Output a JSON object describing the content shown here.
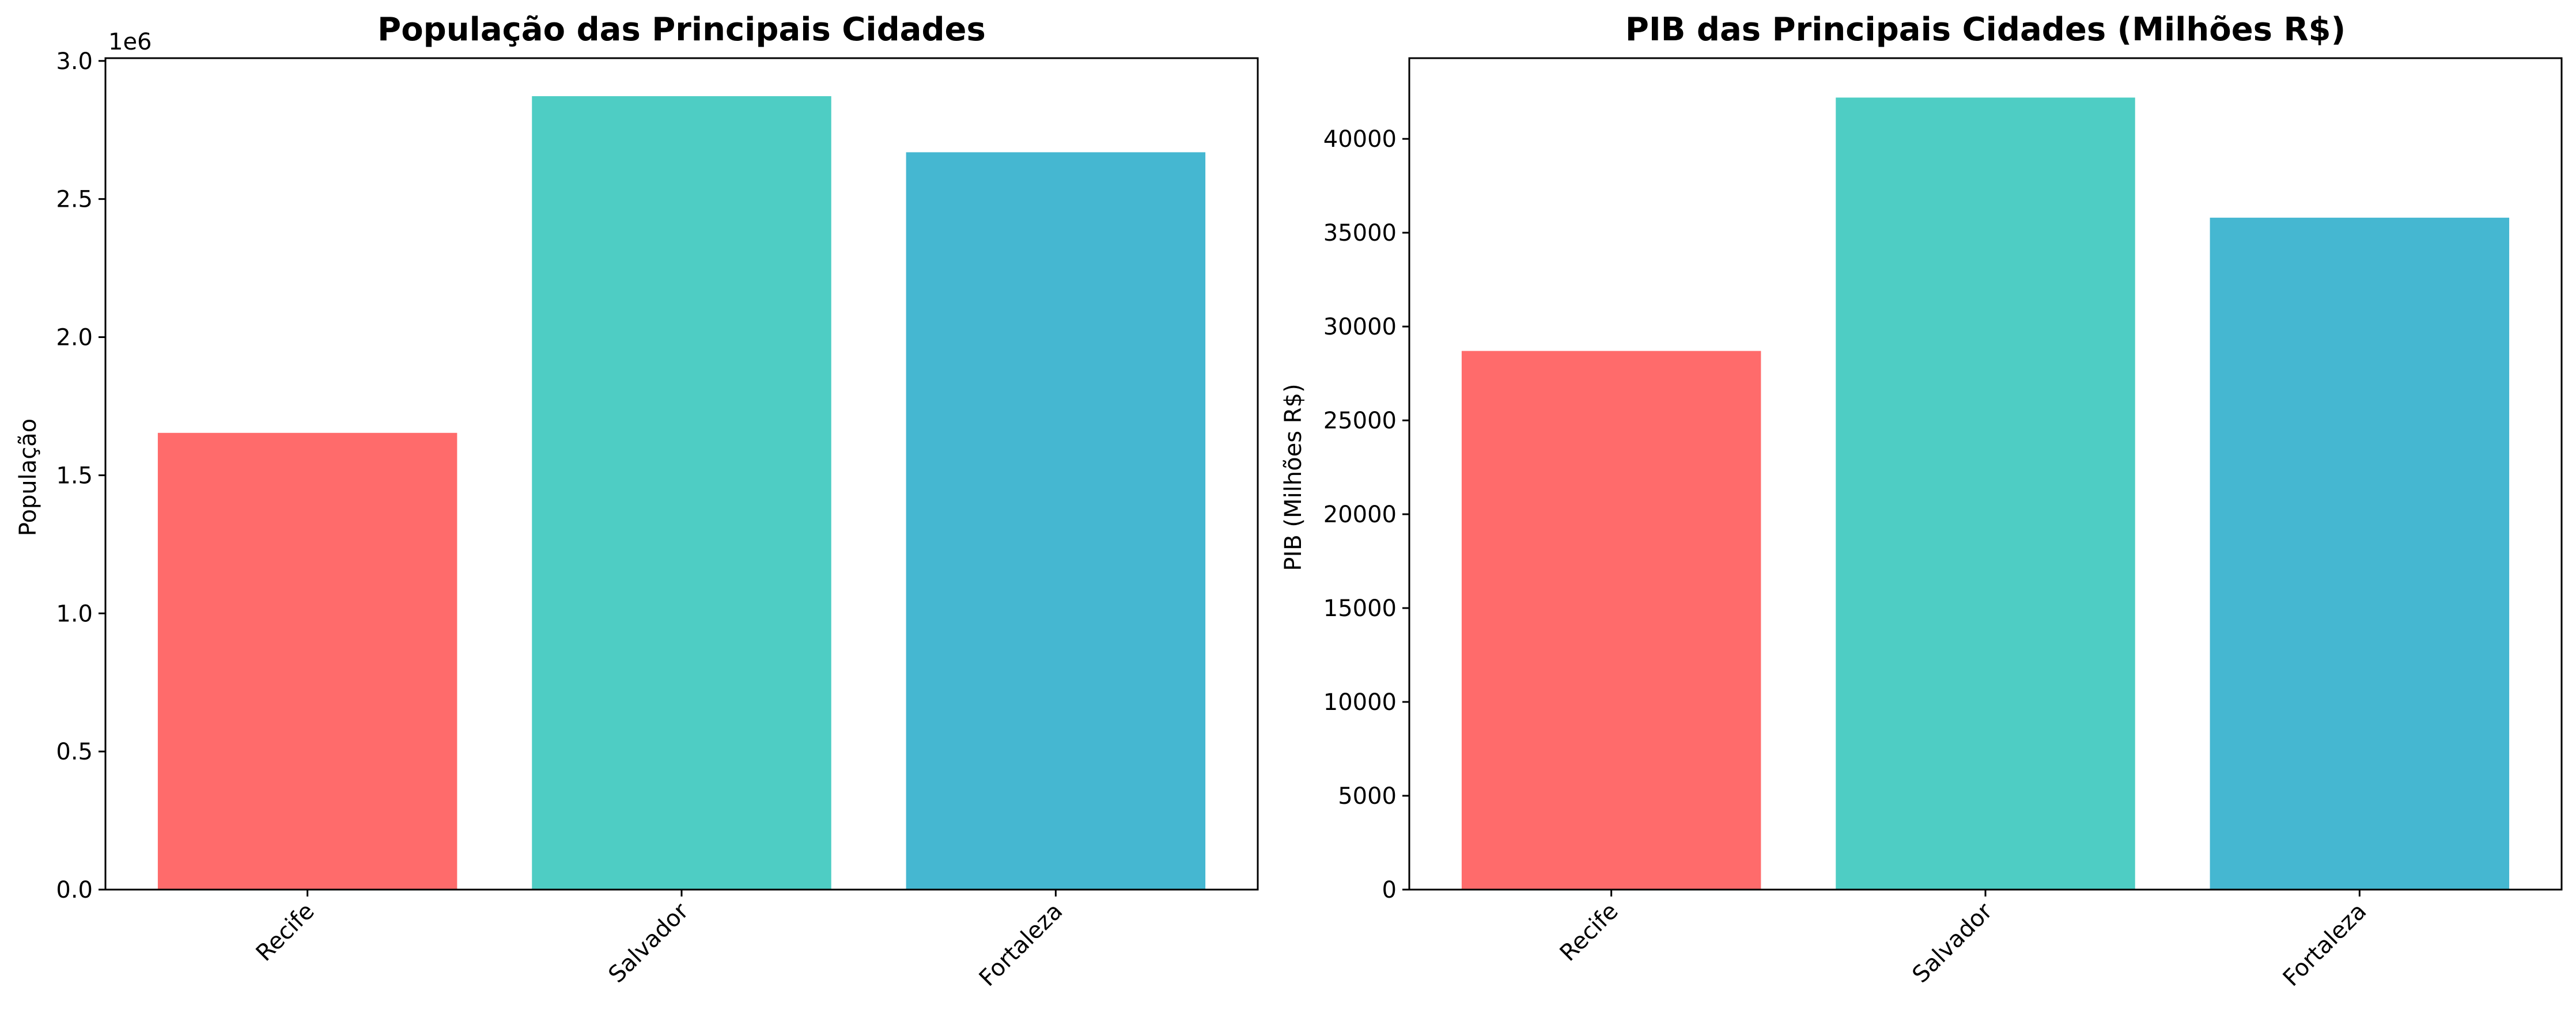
{
  "chart_data": [
    {
      "type": "bar",
      "title": "População das Principais Cidades",
      "xlabel": "",
      "ylabel": "População",
      "categories": [
        "Recife",
        "Salvador",
        "Fortaleza"
      ],
      "values": [
        1653461,
        2872347,
        2669342
      ],
      "colors": [
        "#ff6b6b",
        "#4ecdc4",
        "#45b7d1"
      ],
      "ylim": [
        0,
        3010000
      ],
      "yticks": [
        0,
        500000,
        1000000,
        1500000,
        2000000,
        2500000,
        3000000
      ],
      "ytick_labels": [
        "0.0",
        "0.5",
        "1.0",
        "1.5",
        "2.0",
        "2.5",
        "3.0"
      ],
      "y_offset_label": "1e6",
      "xtick_rotation": 45,
      "grid": false,
      "legend": "none"
    },
    {
      "type": "bar",
      "title": "PIB das Principais Cidades (Milhões R$)",
      "xlabel": "",
      "ylabel": "PIB (Milhões R$)",
      "categories": [
        "Recife",
        "Salvador",
        "Fortaleza"
      ],
      "values": [
        28700,
        42200,
        35800
      ],
      "colors": [
        "#ff6b6b",
        "#4ecdc4",
        "#45b7d1"
      ],
      "ylim": [
        0,
        44300
      ],
      "yticks": [
        0,
        5000,
        10000,
        15000,
        20000,
        25000,
        30000,
        35000,
        40000
      ],
      "ytick_labels": [
        "0",
        "5000",
        "10000",
        "15000",
        "20000",
        "25000",
        "30000",
        "35000",
        "40000"
      ],
      "y_offset_label": "",
      "xtick_rotation": 45,
      "grid": false,
      "legend": "none"
    }
  ]
}
